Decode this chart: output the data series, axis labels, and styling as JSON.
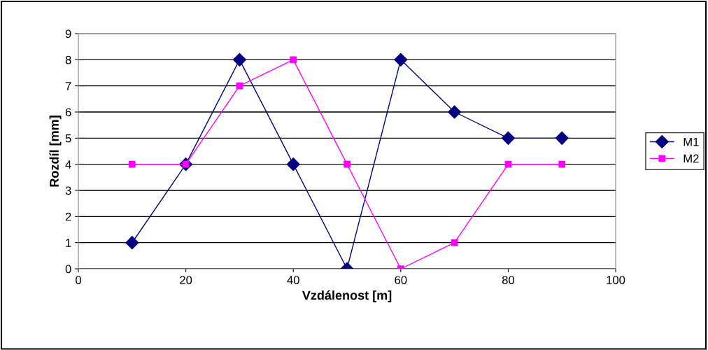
{
  "chart_data": {
    "type": "line",
    "xlabel": "Vzdálenost [m]",
    "ylabel": "Rozdíl [mm]",
    "x": [
      10,
      20,
      30,
      40,
      50,
      60,
      70,
      80,
      90
    ],
    "series": [
      {
        "name": "M1",
        "color": "#000080",
        "marker": "diamond",
        "values": [
          1,
          4,
          8,
          4,
          0,
          8,
          6,
          5,
          5
        ]
      },
      {
        "name": "M2",
        "color": "#ff00ff",
        "marker": "square",
        "values": [
          4,
          4,
          7,
          8,
          4,
          0,
          1,
          4,
          4
        ]
      }
    ],
    "xlim": [
      0,
      100
    ],
    "xticks": [
      0,
      20,
      40,
      60,
      80,
      100
    ],
    "ylim": [
      0,
      9
    ],
    "yticks": [
      0,
      1,
      2,
      3,
      4,
      5,
      6,
      7,
      8,
      9
    ],
    "grid": "y",
    "legend": "right",
    "line_style": "solid"
  }
}
